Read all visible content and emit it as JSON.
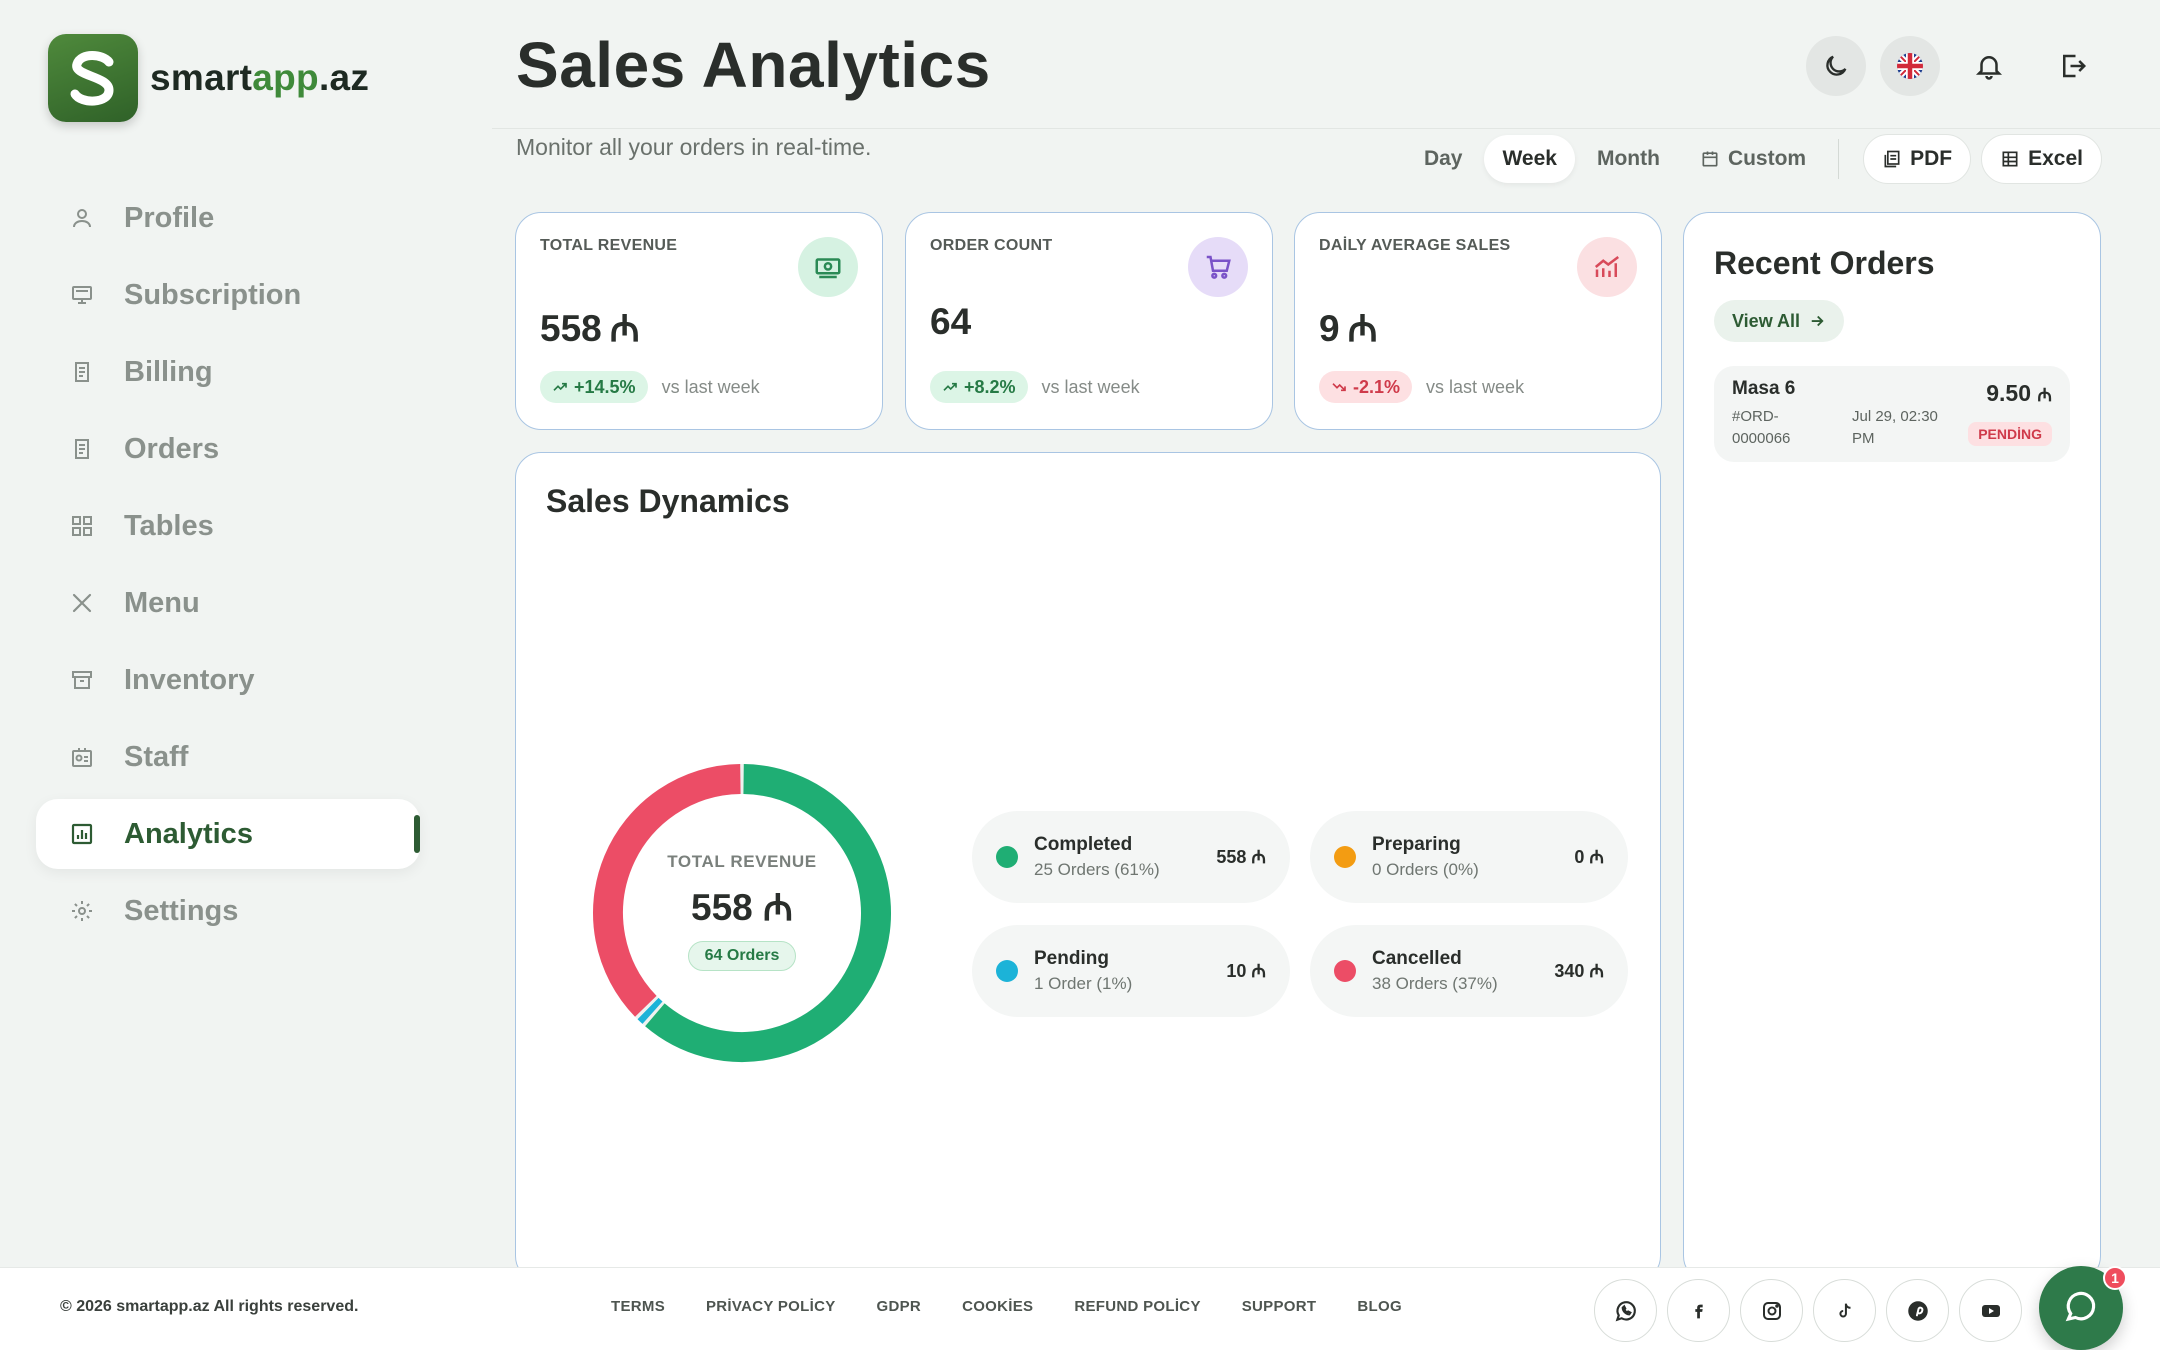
{
  "brand": {
    "name_main": "smart",
    "name_accent": "app",
    "name_tail": ".az",
    "logo_letter": "S"
  },
  "sidebar": {
    "items": [
      {
        "label": "Profile",
        "icon": "user-icon"
      },
      {
        "label": "Subscription",
        "icon": "monitor-icon"
      },
      {
        "label": "Billing",
        "icon": "receipt-icon"
      },
      {
        "label": "Orders",
        "icon": "receipt-icon"
      },
      {
        "label": "Tables",
        "icon": "grid-icon"
      },
      {
        "label": "Menu",
        "icon": "utensils-icon"
      },
      {
        "label": "Inventory",
        "icon": "archive-icon"
      },
      {
        "label": "Staff",
        "icon": "id-card-icon"
      },
      {
        "label": "Analytics",
        "icon": "chart-icon",
        "active": true
      },
      {
        "label": "Settings",
        "icon": "gear-icon"
      }
    ]
  },
  "header": {
    "title": "Sales Analytics",
    "subtitle": "Monitor all your orders in real-time."
  },
  "period": {
    "options": [
      "Day",
      "Week",
      "Month",
      "Custom"
    ],
    "selected": "Week",
    "export_pdf": "PDF",
    "export_excel": "Excel"
  },
  "currency_symbol": "₼",
  "stats": [
    {
      "label": "TOTAL REVENUE",
      "value": "558",
      "currency": true,
      "change": "+14.5%",
      "trend": "up",
      "compare": "vs last week",
      "icon": "money-icon",
      "icon_bg": "#d6f2e2",
      "icon_color": "#2b8a55"
    },
    {
      "label": "ORDER COUNT",
      "value": "64",
      "currency": false,
      "change": "+8.2%",
      "trend": "up",
      "compare": "vs last week",
      "icon": "cart-icon",
      "icon_bg": "#e6dcf8",
      "icon_color": "#7a52c8"
    },
    {
      "label": "DAİLY AVERAGE SALES",
      "value": "9",
      "currency": true,
      "change": "-2.1%",
      "trend": "down",
      "compare": "vs last week",
      "icon": "trend-chart-icon",
      "icon_bg": "#fbe0e2",
      "icon_color": "#d84a5a"
    }
  ],
  "dynamics": {
    "title": "Sales Dynamics",
    "center_label": "TOTAL REVENUE",
    "center_value": "558",
    "center_badge": "64 Orders"
  },
  "chart_data": {
    "type": "pie",
    "categories": [
      "Completed",
      "Preparing",
      "Pending",
      "Cancelled"
    ],
    "values": [
      558,
      0,
      10,
      340
    ],
    "order_counts": [
      25,
      0,
      1,
      38
    ],
    "order_shares": [
      "61%",
      "0%",
      "1%",
      "37%"
    ],
    "colors": [
      "#1fae74",
      "#f39c12",
      "#1cb3d8",
      "#ec4d66"
    ],
    "series_text": [
      {
        "name": "Completed",
        "sub": "25 Orders (61%)",
        "value": "558"
      },
      {
        "name": "Preparing",
        "sub": "0 Orders (0%)",
        "value": "0"
      },
      {
        "name": "Pending",
        "sub": "1 Order (1%)",
        "value": "10"
      },
      {
        "name": "Cancelled",
        "sub": "38 Orders (37%)",
        "value": "340"
      }
    ]
  },
  "recent": {
    "title": "Recent Orders",
    "view_all": "View All",
    "orders": [
      {
        "name": "Masa 6",
        "id": "#ORD-0000066",
        "date": "Jul 29, 02:30 PM",
        "amount": "9.50",
        "status": "PENDİNG"
      }
    ]
  },
  "footer": {
    "copyright": "© 2026 smartapp.az All rights reserved.",
    "links": [
      "TERMS",
      "PRİVACY POLİCY",
      "GDPR",
      "COOKİES",
      "REFUND POLİCY",
      "SUPPORT",
      "BLOG"
    ],
    "socials": [
      "whatsapp-icon",
      "facebook-icon",
      "instagram-icon",
      "tiktok-icon",
      "pinterest-icon",
      "youtube-icon"
    ],
    "chat_badge": "1"
  }
}
